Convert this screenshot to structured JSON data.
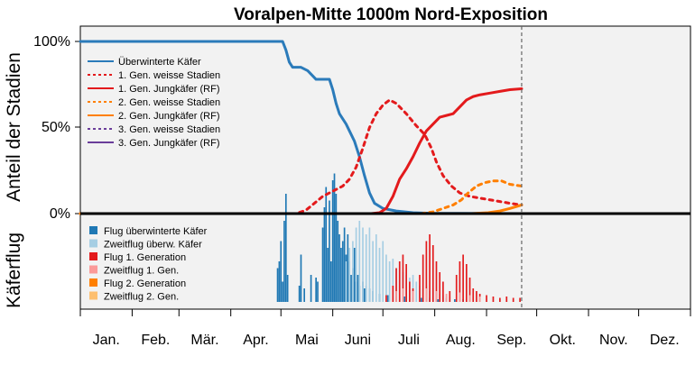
{
  "chart_data": {
    "type": "line",
    "title": "Voralpen-Mitte 1000m Nord-Exposition",
    "ylabel_top": "Anteil der Stadien",
    "ylabel_bottom": "Käferflug",
    "yticks": [
      {
        "value": 100,
        "label": "100%"
      },
      {
        "value": 50,
        "label": "50%"
      },
      {
        "value": 0,
        "label": "0%"
      }
    ],
    "ylim": [
      0,
      100
    ],
    "xlim": [
      1,
      366
    ],
    "months": [
      "Jan.",
      "Feb.",
      "Mär.",
      "Apr.",
      "Mai",
      "Juni",
      "Juli",
      "Aug.",
      "Sep.",
      "Okt.",
      "Nov.",
      "Dez."
    ],
    "current_day": 265,
    "colors": {
      "ueberwinterte": "#2b7bba",
      "gen1_weiss": "#e31a1c",
      "gen1_jung": "#e31a1c",
      "gen2_weiss": "#ff7f00",
      "gen2_jung": "#ff7f00",
      "gen3_weiss": "#6a3d9a",
      "gen3_jung": "#6a3d9a",
      "flug_ueberw": "#1f78b4",
      "zweitflug_ueberw": "#a6cee3",
      "flug_gen1": "#e31a1c",
      "zweitflug_gen1": "#fb9a99",
      "flug_gen2": "#ff7f00",
      "zweitflug_gen2": "#fdbf6f",
      "panel_bg": "#f2f2f2"
    },
    "series": [
      {
        "key": "ueberwinterte",
        "name": "Überwinterte Käfer",
        "dash": false,
        "points": [
          [
            1,
            100
          ],
          [
            122,
            100
          ],
          [
            124,
            95
          ],
          [
            126,
            88
          ],
          [
            128,
            85
          ],
          [
            133,
            85
          ],
          [
            137,
            83
          ],
          [
            140,
            80
          ],
          [
            142,
            78
          ],
          [
            150,
            78
          ],
          [
            152,
            72
          ],
          [
            154,
            64
          ],
          [
            156,
            58
          ],
          [
            158,
            55
          ],
          [
            160,
            52
          ],
          [
            162,
            48
          ],
          [
            165,
            42
          ],
          [
            168,
            33
          ],
          [
            171,
            22
          ],
          [
            174,
            12
          ],
          [
            177,
            6
          ],
          [
            182,
            3
          ],
          [
            190,
            1.5
          ],
          [
            200,
            0.5
          ],
          [
            210,
            0.2
          ],
          [
            265,
            0
          ]
        ]
      },
      {
        "key": "gen1_weiss",
        "name": "1. Gen. weisse Stadien",
        "dash": true,
        "points": [
          [
            1,
            0
          ],
          [
            130,
            0
          ],
          [
            136,
            2
          ],
          [
            141,
            6
          ],
          [
            146,
            10
          ],
          [
            150,
            12
          ],
          [
            154,
            14
          ],
          [
            158,
            16
          ],
          [
            162,
            20
          ],
          [
            166,
            27
          ],
          [
            170,
            38
          ],
          [
            174,
            50
          ],
          [
            178,
            58
          ],
          [
            182,
            63
          ],
          [
            186,
            66
          ],
          [
            190,
            64
          ],
          [
            196,
            58
          ],
          [
            202,
            51
          ],
          [
            207,
            46
          ],
          [
            211,
            38
          ],
          [
            214,
            30
          ],
          [
            218,
            22
          ],
          [
            223,
            16
          ],
          [
            228,
            12
          ],
          [
            234,
            10
          ],
          [
            240,
            9
          ],
          [
            246,
            8
          ],
          [
            252,
            7
          ],
          [
            258,
            6
          ],
          [
            265,
            5
          ]
        ]
      },
      {
        "key": "gen1_jung",
        "name": "1. Gen. Jungkäfer (RF)",
        "dash": false,
        "points": [
          [
            1,
            0
          ],
          [
            175,
            0
          ],
          [
            180,
            0.5
          ],
          [
            184,
            3
          ],
          [
            188,
            10
          ],
          [
            192,
            20
          ],
          [
            196,
            26
          ],
          [
            200,
            33
          ],
          [
            204,
            41
          ],
          [
            208,
            48
          ],
          [
            212,
            52
          ],
          [
            216,
            56
          ],
          [
            220,
            57
          ],
          [
            224,
            58
          ],
          [
            228,
            62
          ],
          [
            232,
            66
          ],
          [
            236,
            68
          ],
          [
            240,
            69
          ],
          [
            246,
            70
          ],
          [
            252,
            71
          ],
          [
            258,
            72
          ],
          [
            265,
            72.5
          ]
        ]
      },
      {
        "key": "gen2_weiss",
        "name": "2. Gen. weisse Stadien",
        "dash": true,
        "points": [
          [
            1,
            0
          ],
          [
            205,
            0
          ],
          [
            212,
            1
          ],
          [
            218,
            3
          ],
          [
            224,
            5
          ],
          [
            229,
            8
          ],
          [
            233,
            12
          ],
          [
            238,
            16
          ],
          [
            243,
            18
          ],
          [
            248,
            19
          ],
          [
            253,
            19
          ],
          [
            258,
            17
          ],
          [
            265,
            16
          ]
        ]
      },
      {
        "key": "gen2_jung",
        "name": "2. Gen. Jungkäfer (RF)",
        "dash": false,
        "points": [
          [
            1,
            0
          ],
          [
            235,
            0
          ],
          [
            245,
            0.5
          ],
          [
            252,
            1.5
          ],
          [
            258,
            3
          ],
          [
            265,
            5
          ]
        ]
      },
      {
        "key": "gen3_weiss",
        "name": "3. Gen. weisse Stadien",
        "dash": true,
        "points": []
      },
      {
        "key": "gen3_jung",
        "name": "3. Gen. Jungkäfer (RF)",
        "dash": false,
        "points": []
      }
    ],
    "flight_legend": [
      {
        "key": "flug_ueberw",
        "name": "Flug überwinterte Käfer"
      },
      {
        "key": "zweitflug_ueberw",
        "name": "Zweitflug überw. Käfer"
      },
      {
        "key": "flug_gen1",
        "name": "Flug 1. Generation"
      },
      {
        "key": "zweitflug_gen1",
        "name": "Zweitflug 1. Gen."
      },
      {
        "key": "flug_gen2",
        "name": "Flug 2. Generation"
      },
      {
        "key": "zweitflug_gen2",
        "name": "Zweitflug 2. Gen."
      }
    ],
    "flight_bars": {
      "flug_ueberw": [
        [
          119,
          0.25
        ],
        [
          120,
          0.3
        ],
        [
          121,
          0.45
        ],
        [
          122,
          0.15
        ],
        [
          123,
          0.6
        ],
        [
          124,
          0.8
        ],
        [
          125,
          0.2
        ],
        [
          132,
          0.12
        ],
        [
          133,
          0.35
        ],
        [
          135,
          0.1
        ],
        [
          139,
          0.2
        ],
        [
          142,
          0.18
        ],
        [
          143,
          0.15
        ],
        [
          146,
          0.55
        ],
        [
          147,
          0.7
        ],
        [
          148,
          0.85
        ],
        [
          149,
          0.4
        ],
        [
          150,
          0.75
        ],
        [
          151,
          0.3
        ],
        [
          152,
          0.9
        ],
        [
          153,
          0.95
        ],
        [
          154,
          0.8
        ],
        [
          155,
          0.6
        ],
        [
          156,
          0.5
        ],
        [
          157,
          0.4
        ],
        [
          158,
          0.45
        ],
        [
          159,
          0.55
        ],
        [
          160,
          0.35
        ],
        [
          161,
          0.5
        ],
        [
          162,
          0.3
        ],
        [
          163,
          0.2
        ],
        [
          164,
          0.25
        ],
        [
          165,
          0.4
        ],
        [
          166,
          0.15
        ],
        [
          167,
          0.2
        ],
        [
          168,
          0.12
        ],
        [
          170,
          0.15
        ],
        [
          171,
          0.1
        ],
        [
          172,
          0.12
        ],
        [
          174,
          0.1
        ],
        [
          176,
          0.08
        ],
        [
          180,
          0.06
        ],
        [
          185,
          0.05
        ],
        [
          190,
          0.04
        ],
        [
          195,
          0.04
        ],
        [
          200,
          0.03
        ],
        [
          205,
          0.03
        ],
        [
          210,
          0.03
        ],
        [
          215,
          0.02
        ],
        [
          220,
          0.03
        ],
        [
          225,
          0.02
        ],
        [
          230,
          0.02
        ]
      ],
      "zweitflug_ueberw": [
        [
          160,
          0.3
        ],
        [
          162,
          0.4
        ],
        [
          164,
          0.45
        ],
        [
          166,
          0.55
        ],
        [
          168,
          0.6
        ],
        [
          170,
          0.55
        ],
        [
          172,
          0.5
        ],
        [
          174,
          0.55
        ],
        [
          176,
          0.45
        ],
        [
          178,
          0.5
        ],
        [
          180,
          0.4
        ],
        [
          182,
          0.45
        ],
        [
          184,
          0.35
        ],
        [
          186,
          0.3
        ],
        [
          188,
          0.32
        ],
        [
          190,
          0.25
        ],
        [
          192,
          0.3
        ],
        [
          194,
          0.22
        ],
        [
          196,
          0.2
        ],
        [
          198,
          0.18
        ],
        [
          200,
          0.2
        ],
        [
          202,
          0.15
        ],
        [
          204,
          0.12
        ],
        [
          206,
          0.1
        ],
        [
          208,
          0.12
        ],
        [
          210,
          0.08
        ],
        [
          212,
          0.1
        ],
        [
          214,
          0.07
        ],
        [
          216,
          0.06
        ],
        [
          218,
          0.05
        ],
        [
          220,
          0.05
        ],
        [
          222,
          0.04
        ]
      ],
      "flug_gen1": [
        [
          184,
          0.05
        ],
        [
          188,
          0.12
        ],
        [
          190,
          0.25
        ],
        [
          192,
          0.3
        ],
        [
          194,
          0.35
        ],
        [
          196,
          0.28
        ],
        [
          198,
          0.15
        ],
        [
          200,
          0.1
        ],
        [
          204,
          0.2
        ],
        [
          206,
          0.35
        ],
        [
          208,
          0.45
        ],
        [
          210,
          0.5
        ],
        [
          212,
          0.42
        ],
        [
          214,
          0.3
        ],
        [
          216,
          0.22
        ],
        [
          218,
          0.15
        ],
        [
          222,
          0.08
        ],
        [
          226,
          0.2
        ],
        [
          228,
          0.3
        ],
        [
          230,
          0.35
        ],
        [
          232,
          0.28
        ],
        [
          234,
          0.18
        ],
        [
          236,
          0.1
        ],
        [
          238,
          0.08
        ],
        [
          240,
          0.06
        ],
        [
          244,
          0.05
        ],
        [
          248,
          0.04
        ],
        [
          252,
          0.03
        ],
        [
          256,
          0.04
        ],
        [
          260,
          0.03
        ],
        [
          264,
          0.03
        ]
      ],
      "zweitflug_gen1": [
        [
          190,
          0.08
        ],
        [
          194,
          0.1
        ],
        [
          200,
          0.08
        ],
        [
          208,
          0.1
        ],
        [
          214,
          0.08
        ],
        [
          220,
          0.06
        ],
        [
          228,
          0.07
        ],
        [
          234,
          0.05
        ],
        [
          240,
          0.04
        ]
      ]
    }
  }
}
